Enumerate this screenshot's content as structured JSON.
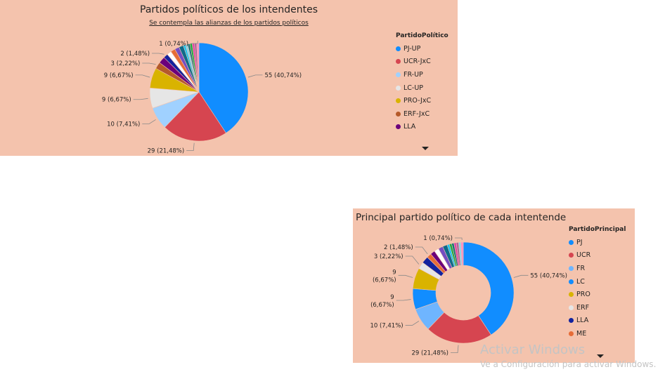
{
  "chart_data": [
    {
      "type": "pie",
      "title": "Partidos políticos de los intendentes",
      "subtitle": "Se contempla las alianzas de los partidos políticos",
      "legend_title": "PartidoPolítico",
      "legend_position": "right",
      "categories": [
        "PJ-UP",
        "UCR-JxC",
        "FR-UP",
        "LC-UP",
        "PRO-JxC",
        "ERF-JxC",
        "LLA"
      ],
      "slices": [
        {
          "name": "PJ-UP",
          "value": 55,
          "label": "55 (40,74%)",
          "color": "#118dff"
        },
        {
          "name": "UCR-JxC",
          "value": 29,
          "label": "29 (21,48%)",
          "color": "#d64550"
        },
        {
          "name": "FR-UP",
          "value": 10,
          "label": "10 (7,41%)",
          "color": "#a0d1ff"
        },
        {
          "name": "LC-UP",
          "value": 9,
          "label": "9 (6,67%)",
          "color": "#e6e6e6"
        },
        {
          "name": "PRO-JxC",
          "value": 9,
          "label": "9 (6,67%)",
          "color": "#d9b300"
        },
        {
          "name": "ERF-JxC",
          "value": 3,
          "label": "3 (2,22%)",
          "color": "#b55a2a"
        },
        {
          "name": "LLA",
          "value": 3,
          "label": "",
          "color": "#6b007b"
        },
        {
          "name": "",
          "value": 2,
          "label": "2 (1,48%)",
          "color": "#12239e"
        },
        {
          "name": "",
          "value": 2,
          "label": "",
          "color": "#ffffff"
        },
        {
          "name": "",
          "value": 2,
          "label": "",
          "color": "#e66c37"
        },
        {
          "name": "",
          "value": 2,
          "label": "",
          "color": "#744ec2"
        },
        {
          "name": "",
          "value": 2,
          "label": "",
          "color": "#0f6b8a"
        },
        {
          "name": "",
          "value": 1,
          "label": "",
          "color": "#15c6f4"
        },
        {
          "name": "",
          "value": 1,
          "label": "",
          "color": "#8ad4eb"
        },
        {
          "name": "",
          "value": 1,
          "label": "",
          "color": "#197278"
        },
        {
          "name": "",
          "value": 1,
          "label": "",
          "color": "#1aab40"
        },
        {
          "name": "",
          "value": 1,
          "label": "",
          "color": "#e044a7"
        },
        {
          "name": "",
          "value": 1,
          "label": "",
          "color": "#a66999"
        },
        {
          "name": "",
          "value": 1,
          "label": "1 (0,74%)",
          "color": "#fd8dc5"
        }
      ]
    },
    {
      "type": "donut",
      "title": "Principal partido político de cada intentende",
      "legend_title": "PartidoPrincipal",
      "legend_position": "right",
      "categories": [
        "PJ",
        "UCR",
        "FR",
        "LC",
        "PRO",
        "ERF",
        "LLA",
        "ME"
      ],
      "slices": [
        {
          "name": "PJ",
          "value": 55,
          "label": "55 (40,74%)",
          "color": "#118dff"
        },
        {
          "name": "UCR",
          "value": 29,
          "label": "29 (21,48%)",
          "color": "#d64550"
        },
        {
          "name": "FR",
          "value": 10,
          "label": "10 (7,41%)",
          "color": "#6fb5ff"
        },
        {
          "name": "LC",
          "value": 9,
          "label": "9 (6,67%)",
          "color": "#118dff"
        },
        {
          "name": "PRO",
          "value": 9,
          "label": "9 (6,67%)",
          "color": "#d9b300"
        },
        {
          "name": "ERF",
          "value": 3,
          "label": "3 (2,22%)",
          "color": "#e6e6e6"
        },
        {
          "name": "LLA",
          "value": 3,
          "label": "",
          "color": "#12239e"
        },
        {
          "name": "ME",
          "value": 2,
          "label": "2 (1,48%)",
          "color": "#e66c37"
        },
        {
          "name": "",
          "value": 2,
          "label": "",
          "color": "#6b007b"
        },
        {
          "name": "",
          "value": 2,
          "label": "",
          "color": "#ffffff"
        },
        {
          "name": "",
          "value": 2,
          "label": "",
          "color": "#744ec2"
        },
        {
          "name": "",
          "value": 2,
          "label": "",
          "color": "#0f6b8a"
        },
        {
          "name": "",
          "value": 1,
          "label": "",
          "color": "#15c6f4"
        },
        {
          "name": "",
          "value": 1,
          "label": "",
          "color": "#1aab40"
        },
        {
          "name": "",
          "value": 1,
          "label": "",
          "color": "#197278"
        },
        {
          "name": "",
          "value": 1,
          "label": "",
          "color": "#e044a7"
        },
        {
          "name": "",
          "value": 1,
          "label": "",
          "color": "#a66999"
        },
        {
          "name": "",
          "value": 1,
          "label": "",
          "color": "#8ad4eb"
        },
        {
          "name": "",
          "value": 1,
          "label": "1 (0,74%)",
          "color": "#fd8dc5"
        }
      ]
    }
  ],
  "watermark": {
    "title": "Activar Windows",
    "subtitle": "Ve a Configuración para activar Windows."
  }
}
